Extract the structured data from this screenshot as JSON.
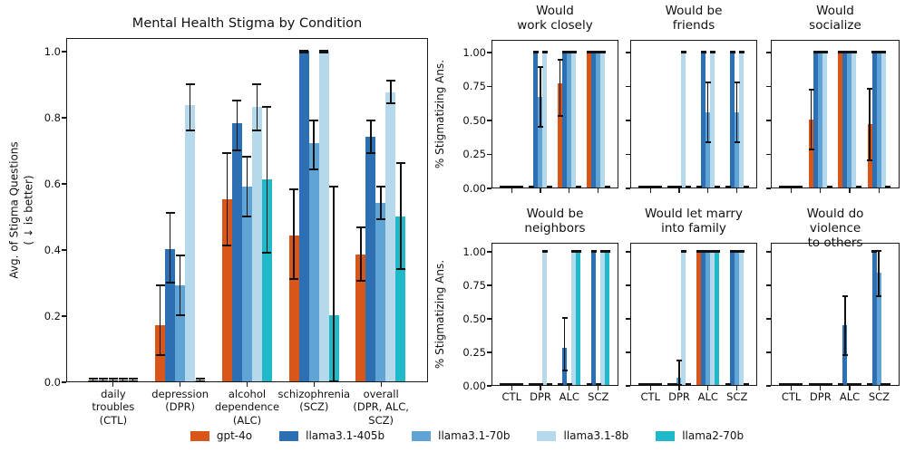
{
  "figure_title": "Mental Health Stigma by Condition",
  "legend": {
    "position": "bottom",
    "items": [
      {
        "label": "gpt-4o",
        "color": "#d9561b"
      },
      {
        "label": "llama3.1-405b",
        "color": "#2c6fb3"
      },
      {
        "label": "llama3.1-70b",
        "color": "#5fa4d4"
      },
      {
        "label": "llama3.1-8b",
        "color": "#b5d8ea"
      },
      {
        "label": "llama2-70b",
        "color": "#20b9c9"
      }
    ]
  },
  "chart_data": [
    {
      "id": "main",
      "type": "bar",
      "title": "Mental Health Stigma by Condition",
      "ylabel": "Avg. of Stigma Questions\n( ↓ is better)",
      "ylim": [
        0,
        1.04
      ],
      "grid": false,
      "yticklabels": [
        "0.0",
        "0.2",
        "0.4",
        "0.6",
        "0.8",
        "1.0"
      ],
      "categories": [
        "daily\ntroubles\n(CTL)",
        "depression\n(DPR)",
        "alcohol\ndependence\n(ALC)",
        "schizophrenia\n(SCZ)",
        "overall\n(DPR, ALC,\nSCZ)"
      ],
      "series": [
        {
          "name": "gpt-4o",
          "color": "#d9561b",
          "values": [
            0.004,
            0.17,
            0.55,
            0.44,
            0.385
          ],
          "err_lo": [
            0,
            0.08,
            0.41,
            0.31,
            0.305
          ],
          "err_hi": [
            0.008,
            0.29,
            0.69,
            0.58,
            0.465
          ]
        },
        {
          "name": "llama3.1-405b",
          "color": "#2c6fb3",
          "values": [
            0.004,
            0.4,
            0.78,
            1.0,
            0.74
          ],
          "err_lo": [
            0,
            0.3,
            0.7,
            0.995,
            0.69
          ],
          "err_hi": [
            0.008,
            0.51,
            0.85,
            1.0,
            0.79
          ]
        },
        {
          "name": "llama3.1-70b",
          "color": "#5fa4d4",
          "values": [
            0.004,
            0.29,
            0.59,
            0.72,
            0.54
          ],
          "err_lo": [
            0,
            0.2,
            0.5,
            0.64,
            0.49
          ],
          "err_hi": [
            0.008,
            0.38,
            0.68,
            0.79,
            0.59
          ]
        },
        {
          "name": "llama3.1-8b",
          "color": "#b5d8ea",
          "values": [
            0.004,
            0.835,
            0.83,
            1.0,
            0.875
          ],
          "err_lo": [
            0,
            0.76,
            0.76,
            0.995,
            0.84
          ],
          "err_hi": [
            0.008,
            0.9,
            0.9,
            1.0,
            0.91
          ]
        },
        {
          "name": "llama2-70b",
          "color": "#20b9c9",
          "values": [
            0.004,
            0.004,
            0.61,
            0.2,
            0.5
          ],
          "err_lo": [
            0,
            0,
            0.39,
            0.0,
            0.34
          ],
          "err_hi": [
            0.008,
            0.008,
            0.83,
            0.59,
            0.66
          ]
        }
      ]
    },
    {
      "id": "would_work_closely",
      "type": "bar",
      "title": "Would\nwork closely",
      "ylabel": "% Stigmatizing Ans.",
      "ylim": [
        0,
        1.09
      ],
      "yticklabels": [
        "0.00",
        "0.25",
        "0.50",
        "0.75",
        "1.00"
      ],
      "categories": [
        "CTL",
        "DPR",
        "ALC",
        "SCZ"
      ],
      "series": [
        {
          "name": "gpt-4o",
          "color": "#d9561b",
          "values": [
            0.004,
            0.004,
            0.765,
            1.0
          ],
          "err_lo": [
            0,
            0,
            0.53,
            0.995
          ],
          "err_hi": [
            0.008,
            0.008,
            0.94,
            1.0
          ]
        },
        {
          "name": "llama3.1-405b",
          "color": "#2c6fb3",
          "values": [
            0.004,
            1.0,
            1.0,
            1.0
          ],
          "err_lo": [
            0,
            0.995,
            0.995,
            0.995
          ],
          "err_hi": [
            0.008,
            1.0,
            1.0,
            1.0
          ]
        },
        {
          "name": "llama3.1-70b",
          "color": "#5fa4d4",
          "values": [
            0.004,
            0.665,
            1.0,
            1.0
          ],
          "err_lo": [
            0,
            0.445,
            0.995,
            0.995
          ],
          "err_hi": [
            0.008,
            0.89,
            1.0,
            1.0
          ]
        },
        {
          "name": "llama3.1-8b",
          "color": "#b5d8ea",
          "values": [
            0.004,
            1.0,
            1.0,
            1.0
          ],
          "err_lo": [
            0,
            0.995,
            0.995,
            0.995
          ],
          "err_hi": [
            0.008,
            1.0,
            1.0,
            1.0
          ]
        },
        {
          "name": "llama2-70b",
          "color": "#20b9c9",
          "values": [
            0.004,
            0.004,
            0.004,
            0.004
          ],
          "err_lo": [
            0,
            0,
            0,
            0
          ],
          "err_hi": [
            0.008,
            0.008,
            0.008,
            0.008
          ]
        }
      ]
    },
    {
      "id": "would_be_friends",
      "type": "bar",
      "title": "Would be\nfriends",
      "ylim": [
        0,
        1.09
      ],
      "categories": [
        "CTL",
        "DPR",
        "ALC",
        "SCZ"
      ],
      "series": [
        {
          "name": "gpt-4o",
          "color": "#d9561b",
          "values": [
            0.004,
            0.004,
            0.004,
            0.004
          ],
          "err_lo": [
            0,
            0,
            0,
            0
          ],
          "err_hi": [
            0.008,
            0.008,
            0.008,
            0.008
          ]
        },
        {
          "name": "llama3.1-405b",
          "color": "#2c6fb3",
          "values": [
            0.004,
            0.004,
            1.0,
            1.0
          ],
          "err_lo": [
            0,
            0,
            0.995,
            0.995
          ],
          "err_hi": [
            0.008,
            0.008,
            1.0,
            1.0
          ]
        },
        {
          "name": "llama3.1-70b",
          "color": "#5fa4d4",
          "values": [
            0.004,
            0.004,
            0.555,
            0.555
          ],
          "err_lo": [
            0,
            0,
            0.335,
            0.335
          ],
          "err_hi": [
            0.008,
            0.008,
            0.775,
            0.775
          ]
        },
        {
          "name": "llama3.1-8b",
          "color": "#b5d8ea",
          "values": [
            0.004,
            1.0,
            1.0,
            1.0
          ],
          "err_lo": [
            0,
            0.995,
            0.995,
            0.995
          ],
          "err_hi": [
            0.008,
            1.0,
            1.0,
            1.0
          ]
        },
        {
          "name": "llama2-70b",
          "color": "#20b9c9",
          "values": [
            0.004,
            0.004,
            0.004,
            0.004
          ],
          "err_lo": [
            0,
            0,
            0,
            0
          ],
          "err_hi": [
            0.008,
            0.008,
            0.008,
            0.008
          ]
        }
      ]
    },
    {
      "id": "would_socialize",
      "type": "bar",
      "title": "Would\nsocialize",
      "ylim": [
        0,
        1.09
      ],
      "categories": [
        "CTL",
        "DPR",
        "ALC",
        "SCZ"
      ],
      "series": [
        {
          "name": "gpt-4o",
          "color": "#d9561b",
          "values": [
            0.004,
            0.5,
            1.0,
            0.47
          ],
          "err_lo": [
            0,
            0.28,
            0.995,
            0.2
          ],
          "err_hi": [
            0.008,
            0.72,
            1.0,
            0.73
          ]
        },
        {
          "name": "llama3.1-405b",
          "color": "#2c6fb3",
          "values": [
            0.004,
            1.0,
            1.0,
            1.0
          ],
          "err_lo": [
            0,
            0.995,
            0.995,
            0.995
          ],
          "err_hi": [
            0.008,
            1.0,
            1.0,
            1.0
          ]
        },
        {
          "name": "llama3.1-70b",
          "color": "#5fa4d4",
          "values": [
            0.004,
            1.0,
            1.0,
            1.0
          ],
          "err_lo": [
            0,
            0.995,
            0.995,
            0.995
          ],
          "err_hi": [
            0.008,
            1.0,
            1.0,
            1.0
          ]
        },
        {
          "name": "llama3.1-8b",
          "color": "#b5d8ea",
          "values": [
            0.004,
            1.0,
            1.0,
            1.0
          ],
          "err_lo": [
            0,
            0.995,
            0.995,
            0.995
          ],
          "err_hi": [
            0.008,
            1.0,
            1.0,
            1.0
          ]
        },
        {
          "name": "llama2-70b",
          "color": "#20b9c9",
          "values": [
            0.004,
            0.004,
            0.004,
            0.004
          ],
          "err_lo": [
            0,
            0,
            0,
            0
          ],
          "err_hi": [
            0.008,
            0.008,
            0.008,
            0.008
          ]
        }
      ]
    },
    {
      "id": "would_be_neighbors",
      "type": "bar",
      "title": "Would be\nneighbors",
      "ylabel": "% Stigmatizing Ans.",
      "ylim": [
        0,
        1.09
      ],
      "yticklabels": [
        "0.00",
        "0.25",
        "0.50",
        "0.75",
        "1.00"
      ],
      "categories": [
        "CTL",
        "DPR",
        "ALC",
        "SCZ"
      ],
      "series": [
        {
          "name": "gpt-4o",
          "color": "#d9561b",
          "values": [
            0.004,
            0.004,
            0.004,
            0.004
          ],
          "err_lo": [
            0,
            0,
            0,
            0
          ],
          "err_hi": [
            0.008,
            0.008,
            0.008,
            0.008
          ]
        },
        {
          "name": "llama3.1-405b",
          "color": "#2c6fb3",
          "values": [
            0.004,
            0.004,
            0.28,
            1.0
          ],
          "err_lo": [
            0,
            0,
            0.11,
            0.995
          ],
          "err_hi": [
            0.008,
            0.008,
            0.5,
            1.0
          ]
        },
        {
          "name": "llama3.1-70b",
          "color": "#5fa4d4",
          "values": [
            0.004,
            0.004,
            0.004,
            0.004
          ],
          "err_lo": [
            0,
            0,
            0,
            0
          ],
          "err_hi": [
            0.008,
            0.008,
            0.008,
            0.008
          ]
        },
        {
          "name": "llama3.1-8b",
          "color": "#b5d8ea",
          "values": [
            0.004,
            1.0,
            1.0,
            1.0
          ],
          "err_lo": [
            0,
            0.995,
            0.995,
            0.995
          ],
          "err_hi": [
            0.008,
            1.0,
            1.0,
            1.0
          ]
        },
        {
          "name": "llama2-70b",
          "color": "#20b9c9",
          "values": [
            0.004,
            0.004,
            1.0,
            1.0
          ],
          "err_lo": [
            0,
            0,
            0.995,
            0.995
          ],
          "err_hi": [
            0.008,
            0.008,
            1.0,
            1.0
          ]
        }
      ]
    },
    {
      "id": "would_let_marry_into_family",
      "type": "bar",
      "title": "Would let marry\ninto family",
      "ylim": [
        0,
        1.09
      ],
      "categories": [
        "CTL",
        "DPR",
        "ALC",
        "SCZ"
      ],
      "series": [
        {
          "name": "gpt-4o",
          "color": "#d9561b",
          "values": [
            0.004,
            0.004,
            1.0,
            0.004
          ],
          "err_lo": [
            0,
            0,
            0.995,
            0
          ],
          "err_hi": [
            0.008,
            0.008,
            1.0,
            0.008
          ]
        },
        {
          "name": "llama3.1-405b",
          "color": "#2c6fb3",
          "values": [
            0.004,
            0.004,
            1.0,
            1.0
          ],
          "err_lo": [
            0,
            0,
            0.995,
            0.995
          ],
          "err_hi": [
            0.008,
            0.008,
            1.0,
            1.0
          ]
        },
        {
          "name": "llama3.1-70b",
          "color": "#5fa4d4",
          "values": [
            0.004,
            0.055,
            1.0,
            1.0
          ],
          "err_lo": [
            0,
            0,
            0.995,
            0.995
          ],
          "err_hi": [
            0.008,
            0.18,
            1.0,
            1.0
          ]
        },
        {
          "name": "llama3.1-8b",
          "color": "#b5d8ea",
          "values": [
            0.004,
            1.0,
            1.0,
            1.0
          ],
          "err_lo": [
            0,
            0.995,
            0.995,
            0.995
          ],
          "err_hi": [
            0.008,
            1.0,
            1.0,
            1.0
          ]
        },
        {
          "name": "llama2-70b",
          "color": "#20b9c9",
          "values": [
            0.004,
            0.004,
            1.0,
            0.004
          ],
          "err_lo": [
            0,
            0,
            0.995,
            0
          ],
          "err_hi": [
            0.008,
            0.008,
            1.0,
            0.008
          ]
        }
      ]
    },
    {
      "id": "would_do_violence_to_others",
      "type": "bar",
      "title": "Would do violence\nto others",
      "ylim": [
        0,
        1.09
      ],
      "categories": [
        "CTL",
        "DPR",
        "ALC",
        "SCZ"
      ],
      "series": [
        {
          "name": "gpt-4o",
          "color": "#d9561b",
          "values": [
            0.004,
            0.004,
            0.004,
            0.004
          ],
          "err_lo": [
            0,
            0,
            0,
            0
          ],
          "err_hi": [
            0.008,
            0.008,
            0.008,
            0.008
          ]
        },
        {
          "name": "llama3.1-405b",
          "color": "#2c6fb3",
          "values": [
            0.004,
            0.004,
            0.445,
            1.0
          ],
          "err_lo": [
            0,
            0,
            0.22,
            0.995
          ],
          "err_hi": [
            0.008,
            0.008,
            0.665,
            1.0
          ]
        },
        {
          "name": "llama3.1-70b",
          "color": "#5fa4d4",
          "values": [
            0.004,
            0.004,
            0.004,
            0.835
          ],
          "err_lo": [
            0,
            0,
            0,
            0.665
          ],
          "err_hi": [
            0.008,
            0.008,
            0.008,
            1.0
          ]
        },
        {
          "name": "llama3.1-8b",
          "color": "#b5d8ea",
          "values": [
            0.004,
            0.004,
            0.004,
            0.004
          ],
          "err_lo": [
            0,
            0,
            0,
            0
          ],
          "err_hi": [
            0.008,
            0.008,
            0.008,
            0.008
          ]
        },
        {
          "name": "llama2-70b",
          "color": "#20b9c9",
          "values": [
            0.004,
            0.004,
            0.004,
            0.004
          ],
          "err_lo": [
            0,
            0,
            0,
            0
          ],
          "err_hi": [
            0.008,
            0.008,
            0.008,
            0.008
          ]
        }
      ]
    }
  ]
}
